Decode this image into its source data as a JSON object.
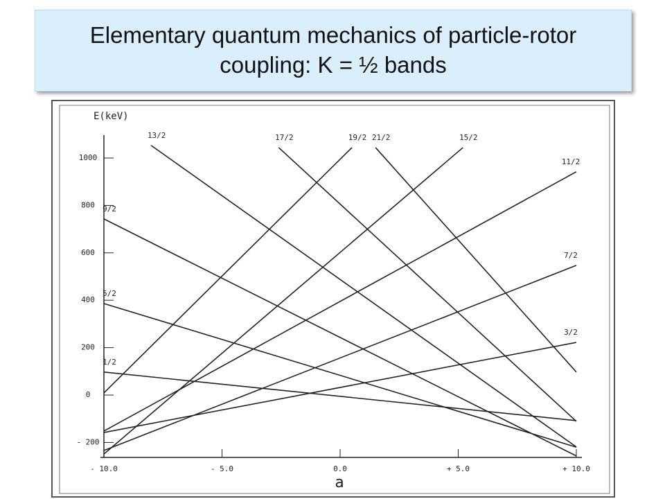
{
  "title": "Elementary quantum mechanics of particle-rotor coupling: K = ½ bands",
  "chart_data": {
    "type": "line",
    "ylabel": "E(keV)",
    "xlabel": "a",
    "xlim": [
      -10,
      10
    ],
    "ylim": [
      -250,
      1100
    ],
    "xticks": [
      {
        "value": -10,
        "label": "- 10.0"
      },
      {
        "value": -5,
        "label": "- 5.0"
      },
      {
        "value": 0,
        "label": "0.0"
      },
      {
        "value": 5,
        "label": "+ 5.0"
      },
      {
        "value": 10,
        "label": "+ 10.0"
      }
    ],
    "yticks": [
      1000,
      800,
      600,
      400,
      200,
      0,
      {
        "value": -200,
        "label": "- 200"
      }
    ],
    "color": "#222222",
    "series": [
      {
        "name": "1/2",
        "x": [
          -10,
          10
        ],
        "values": [
          97,
          -108
        ]
      },
      {
        "name": "3/2",
        "x": [
          -10,
          10
        ],
        "values": [
          -158,
          222
        ]
      },
      {
        "name": "5/2",
        "x": [
          -10,
          10
        ],
        "values": [
          386,
          -220
        ]
      },
      {
        "name": "7/2",
        "x": [
          -10,
          10
        ],
        "values": [
          -234,
          547
        ]
      },
      {
        "name": "9/2",
        "x": [
          -10,
          10
        ],
        "values": [
          743,
          -257
        ]
      },
      {
        "name": "11/2",
        "x": [
          -10,
          10
        ],
        "values": [
          -152,
          942
        ]
      },
      {
        "name": "13/2",
        "x": [
          -8,
          10
        ],
        "values": [
          1053,
          -219
        ]
      },
      {
        "name": "15/2",
        "x": [
          -10,
          5.2
        ],
        "values": [
          -249,
          1044
        ]
      },
      {
        "name": "17/2",
        "x": [
          -2.6,
          10
        ],
        "values": [
          1044,
          -111
        ]
      },
      {
        "name": "19/2",
        "x": [
          -10,
          0.5
        ],
        "values": [
          9,
          1044
        ]
      },
      {
        "name": "21/2",
        "x": [
          1.5,
          10
        ],
        "values": [
          1044,
          97
        ]
      }
    ]
  }
}
